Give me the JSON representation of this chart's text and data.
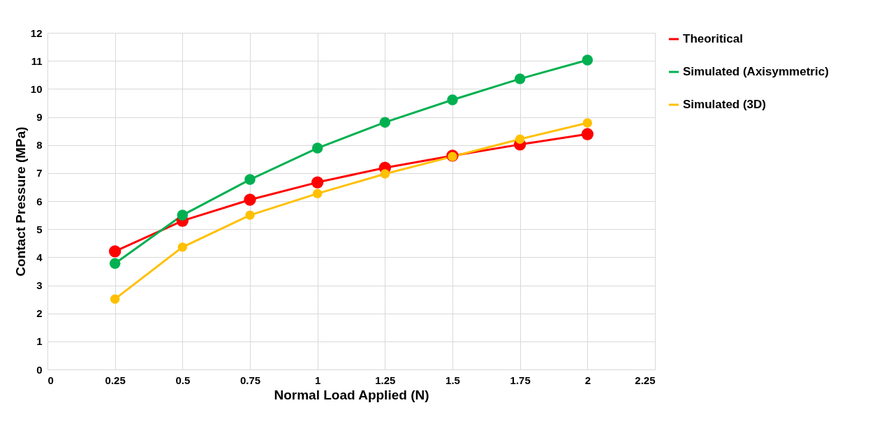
{
  "chart_data": {
    "type": "line",
    "xlabel": "Normal Load Applied (N)",
    "ylabel": "Contact Pressure (MPa)",
    "x": [
      0.25,
      0.5,
      0.75,
      1,
      1.25,
      1.5,
      1.75,
      2
    ],
    "series": [
      {
        "name": "Theoritical",
        "color": "#ff0000",
        "values": [
          4.21,
          5.3,
          6.05,
          6.67,
          7.19,
          7.62,
          8.02,
          8.39
        ]
      },
      {
        "name": "Simulated (Axisymmetric)",
        "color": "#00b050",
        "values": [
          3.78,
          5.5,
          6.77,
          7.89,
          8.81,
          9.61,
          10.36,
          11.03
        ]
      },
      {
        "name": "Simulated (3D)",
        "color": "#ffc000",
        "values": [
          2.51,
          4.36,
          5.5,
          6.27,
          6.97,
          7.59,
          8.21,
          8.79
        ]
      }
    ],
    "xlim": [
      0,
      2.25
    ],
    "xticks": [
      0,
      0.25,
      0.5,
      0.75,
      1,
      1.25,
      1.5,
      1.75,
      2,
      2.25
    ],
    "ylim": [
      0,
      12
    ],
    "yticks": [
      0,
      1,
      2,
      3,
      4,
      5,
      6,
      7,
      8,
      9,
      10,
      11,
      12
    ],
    "grid": true,
    "legend": "right",
    "marker": "circle",
    "line_style": "solid"
  }
}
